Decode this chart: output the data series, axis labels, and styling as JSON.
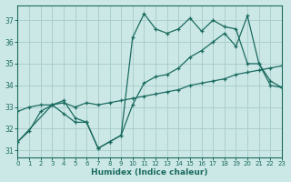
{
  "background_color": "#cce8e6",
  "grid_color": "#aacfcc",
  "line_color": "#1a6b60",
  "xlabel": "Humidex (Indice chaleur)",
  "xlim": [
    0,
    23
  ],
  "ylim": [
    30.7,
    37.7
  ],
  "yticks": [
    31,
    32,
    33,
    34,
    35,
    36,
    37
  ],
  "xticks": [
    0,
    1,
    2,
    3,
    4,
    5,
    6,
    7,
    8,
    9,
    10,
    11,
    12,
    13,
    14,
    15,
    16,
    17,
    18,
    19,
    20,
    21,
    22,
    23
  ],
  "line1_x": [
    0,
    1,
    2,
    3,
    4,
    5,
    6,
    7,
    8,
    9,
    10,
    11,
    12,
    13,
    14,
    15,
    16,
    17,
    18,
    19,
    20,
    21,
    22,
    23
  ],
  "line1_y": [
    31.4,
    31.9,
    32.8,
    33.1,
    32.7,
    32.3,
    32.3,
    31.1,
    31.4,
    31.7,
    36.2,
    37.3,
    36.6,
    36.4,
    36.6,
    37.1,
    36.5,
    37.0,
    36.7,
    36.6,
    35.0,
    35.0,
    34.0,
    33.9
  ],
  "line2_x": [
    0,
    1,
    2,
    3,
    4,
    5,
    6,
    7,
    8,
    9,
    10,
    11,
    12,
    13,
    14,
    15,
    16,
    17,
    18,
    19,
    20,
    21,
    22,
    23
  ],
  "line2_y": [
    32.8,
    33.0,
    33.1,
    33.1,
    33.2,
    33.0,
    33.2,
    33.1,
    33.2,
    33.3,
    33.4,
    33.5,
    33.6,
    33.7,
    33.8,
    34.0,
    34.1,
    34.2,
    34.3,
    34.5,
    34.6,
    34.7,
    34.8,
    34.9
  ],
  "line3_x": [
    0,
    3,
    4,
    5,
    6,
    7,
    8,
    9,
    10,
    11,
    12,
    13,
    14,
    15,
    16,
    17,
    18,
    19,
    20,
    21,
    22,
    23
  ],
  "line3_y": [
    31.4,
    33.1,
    33.3,
    32.5,
    32.3,
    31.1,
    31.4,
    31.7,
    33.1,
    34.1,
    34.4,
    34.5,
    34.8,
    35.3,
    35.6,
    36.0,
    36.4,
    35.8,
    37.2,
    35.0,
    34.2,
    33.9
  ]
}
